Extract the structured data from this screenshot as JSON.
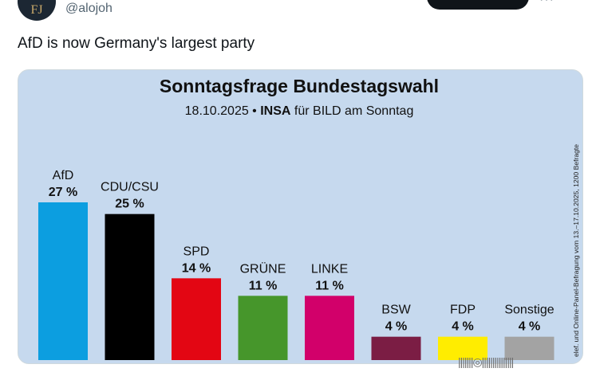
{
  "tweet": {
    "handle": "@alojoh",
    "avatar_text": "FJ",
    "more_glyph": "···",
    "text": "AfD is now Germany's largest party"
  },
  "watermark": "|||||||◎|||||||||||||||",
  "chart_data": {
    "type": "bar",
    "title": "Sonntagsfrage Bundestagswahl",
    "subtitle_date": "18.10.2025 •",
    "subtitle_source": "INSA",
    "subtitle_rest": "für BILD am Sonntag",
    "side_note": "elef. und Online-Panel-Befragung vom 13.–17.10.2025, 1200 Befragte",
    "categories": [
      "AfD",
      "CDU/CSU",
      "SPD",
      "GRÜNE",
      "LINKE",
      "BSW",
      "FDP",
      "Sonstige"
    ],
    "values": [
      27,
      25,
      14,
      11,
      11,
      4,
      4,
      4
    ],
    "value_labels": [
      "27 %",
      "25 %",
      "14 %",
      "11 %",
      "11 %",
      "4 %",
      "4 %",
      "4 %"
    ],
    "colors": [
      "#0c9ee0",
      "#000000",
      "#e30613",
      "#46962b",
      "#d2006a",
      "#7b1d44",
      "#ffed00",
      "#a3a3a3"
    ],
    "ylim": [
      0,
      30
    ],
    "background": "#c6d9ee",
    "grid": false,
    "legend": "none"
  }
}
